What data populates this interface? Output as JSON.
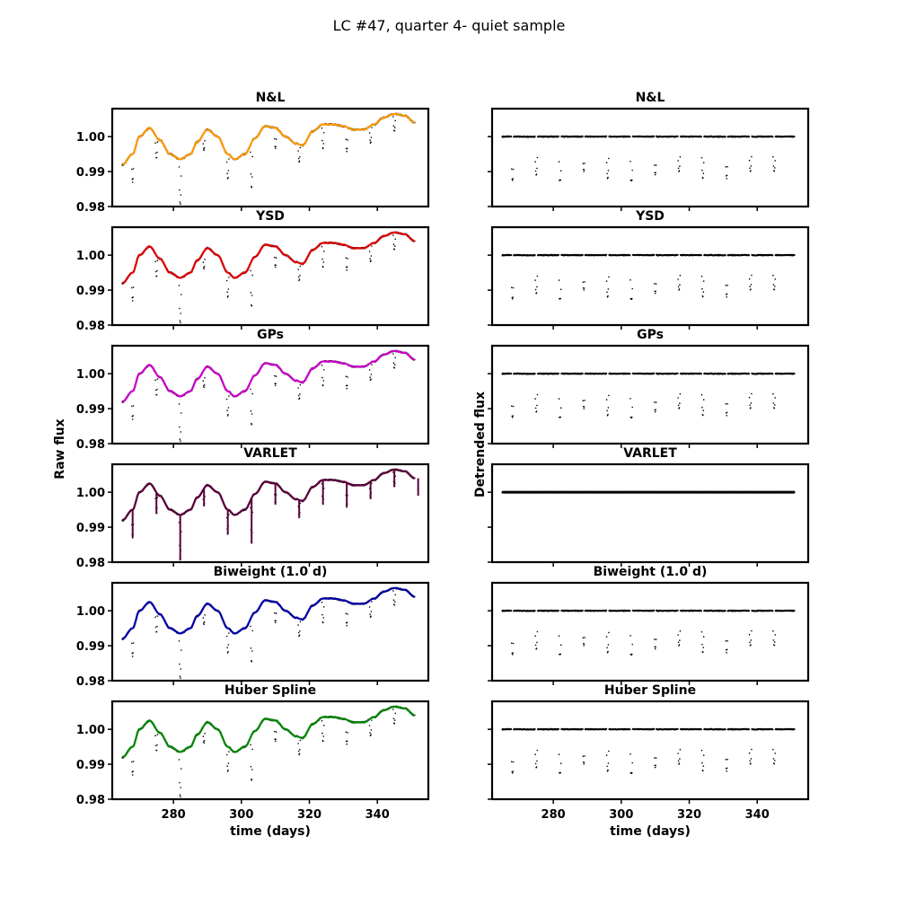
{
  "chart_data": {
    "type": "line",
    "title": "LC #47, quarter 4- quiet sample",
    "left_ylabel": "Raw flux",
    "right_ylabel": "Detrended flux",
    "xlabel": "time (days)",
    "xlim": [
      262,
      355
    ],
    "ylim": [
      0.98,
      1.008
    ],
    "xticks": [
      280,
      300,
      320,
      340
    ],
    "yticks": [
      0.98,
      0.99,
      1.0
    ],
    "ytick_labels": [
      "0.98",
      "0.99",
      "1.00"
    ],
    "xtick_labels": [
      "280",
      "300",
      "320",
      "340"
    ],
    "time_range": [
      265,
      351
    ],
    "transit_period": 7.0,
    "transit_first": 268,
    "transit_depths": [
      0.008,
      0.006,
      0.013,
      0.005,
      0.007,
      0.013,
      0.006,
      0.005,
      0.007,
      0.007,
      0.005,
      0.005,
      0.005
    ],
    "raw_trend": {
      "x": [
        265,
        268,
        270,
        273,
        276,
        279,
        282,
        285,
        287,
        290,
        293,
        296,
        298,
        301,
        304,
        307,
        310,
        313,
        316,
        318,
        321,
        324,
        327,
        330,
        333,
        336,
        339,
        342,
        345,
        348,
        351
      ],
      "y": [
        0.992,
        0.995,
        1.0,
        1.0025,
        0.999,
        0.995,
        0.9935,
        0.995,
        0.9985,
        1.002,
        1.0,
        0.995,
        0.9935,
        0.995,
        0.9995,
        1.003,
        1.0025,
        1.0,
        0.998,
        0.9975,
        1.0015,
        1.0035,
        1.0035,
        1.003,
        1.002,
        1.002,
        1.0035,
        1.0055,
        1.0065,
        1.006,
        1.004
      ]
    },
    "panels": [
      {
        "name": "N&L",
        "color": "#ff9900"
      },
      {
        "name": "YSD",
        "color": "#e00000"
      },
      {
        "name": "GPs",
        "color": "#cc00cc"
      },
      {
        "name": "VARLET",
        "color": "#5a003a"
      },
      {
        "name": "Biweight (1.0 d)",
        "color": "#0000aa"
      },
      {
        "name": "Huber Spline",
        "color": "#008800"
      }
    ]
  }
}
